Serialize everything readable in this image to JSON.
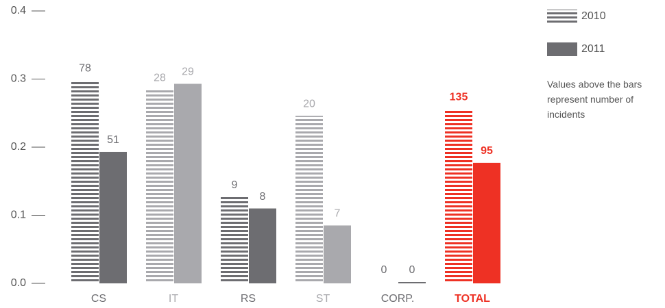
{
  "chart_data": {
    "type": "bar",
    "categories": [
      "CS",
      "IT",
      "RS",
      "ST",
      "CORP.",
      "TOTAL"
    ],
    "category_colors": [
      "#6d6d71",
      "#a9a9ad",
      "#6d6d71",
      "#a9a9ad",
      "#6d6d71",
      "#ee3124"
    ],
    "series": [
      {
        "name": "2010",
        "style": "striped",
        "values": [
          0.298,
          0.284,
          0.127,
          0.246,
          0,
          0.256
        ],
        "incidents": [
          78,
          28,
          9,
          20,
          0,
          135
        ]
      },
      {
        "name": "2011",
        "style": "solid",
        "values": [
          0.193,
          0.293,
          0.11,
          0.085,
          0,
          0.177
        ],
        "incidents": [
          51,
          29,
          8,
          7,
          0,
          95
        ]
      }
    ],
    "ylim": [
      0,
      0.4
    ],
    "yticks": [
      {
        "value": 0,
        "label": "0.0"
      },
      0.1,
      0.2,
      0.3,
      0.4
    ],
    "legend_color": "#6d6d71",
    "annotation": "Values above the bars represent number of incidents"
  }
}
